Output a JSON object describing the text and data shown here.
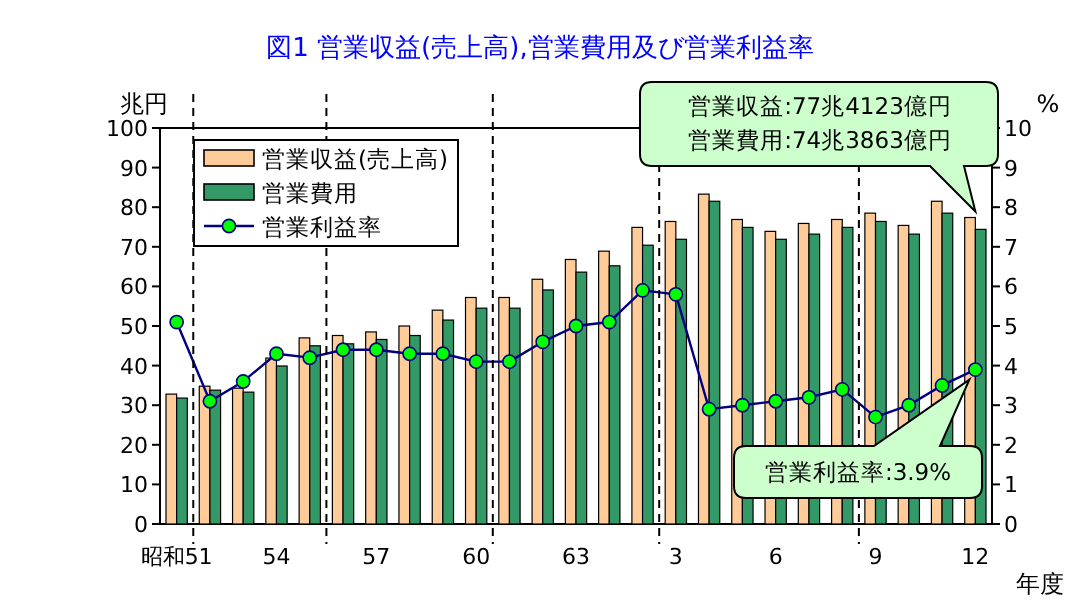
{
  "chart_data": {
    "type": "bar",
    "title": "図1 営業収益(売上高),営業費用及び営業利益率",
    "xlabel": "年度",
    "ylabel": "兆円",
    "y2label": "%",
    "categories": [
      "昭和51",
      null,
      null,
      "54",
      null,
      null,
      "57",
      null,
      null,
      "60",
      null,
      null,
      "63",
      null,
      null,
      "3",
      null,
      null,
      "6",
      null,
      null,
      "9",
      null,
      null,
      "12"
    ],
    "series": [
      {
        "name": "営業収益(売上高)",
        "color": "#ffcc99",
        "values": [
          32.8,
          34.8,
          34.3,
          41.9,
          47.0,
          47.6,
          48.5,
          50.0,
          54.0,
          57.2,
          57.2,
          61.8,
          66.8,
          68.9,
          74.9,
          76.4,
          83.3,
          76.9,
          73.9,
          75.9,
          76.9,
          78.5,
          75.4,
          81.5,
          77.4
        ]
      },
      {
        "name": "営業費用",
        "color": "#339966",
        "values": [
          31.8,
          33.8,
          33.3,
          39.9,
          45.0,
          45.5,
          46.6,
          47.6,
          51.5,
          54.5,
          54.5,
          59.1,
          63.6,
          65.2,
          70.4,
          71.9,
          81.5,
          74.9,
          71.9,
          73.2,
          74.9,
          76.4,
          73.2,
          78.5,
          74.4
        ]
      },
      {
        "name": "営業利益率",
        "type": "line",
        "axis": "y2",
        "color": "#000080",
        "marker": "circle",
        "values": [
          5.1,
          3.1,
          3.6,
          4.3,
          4.2,
          4.4,
          4.4,
          4.3,
          4.3,
          4.1,
          4.1,
          4.6,
          5.0,
          5.1,
          5.9,
          5.8,
          2.9,
          3.0,
          3.1,
          3.2,
          3.4,
          2.7,
          3.0,
          3.5,
          3.9
        ]
      }
    ],
    "ylim": [
      0,
      100
    ],
    "yticks": [
      0,
      10,
      20,
      30,
      40,
      50,
      60,
      70,
      80,
      90,
      100
    ],
    "y2lim": [
      0,
      10
    ],
    "y2ticks": [
      0,
      1,
      2,
      3,
      4,
      5,
      6,
      7,
      8,
      9,
      10
    ],
    "legend": "top left",
    "annotations": [
      "営業収益:77兆4123億円",
      "営業費用:74兆3863億円",
      "営業利益率:3.9%"
    ]
  }
}
